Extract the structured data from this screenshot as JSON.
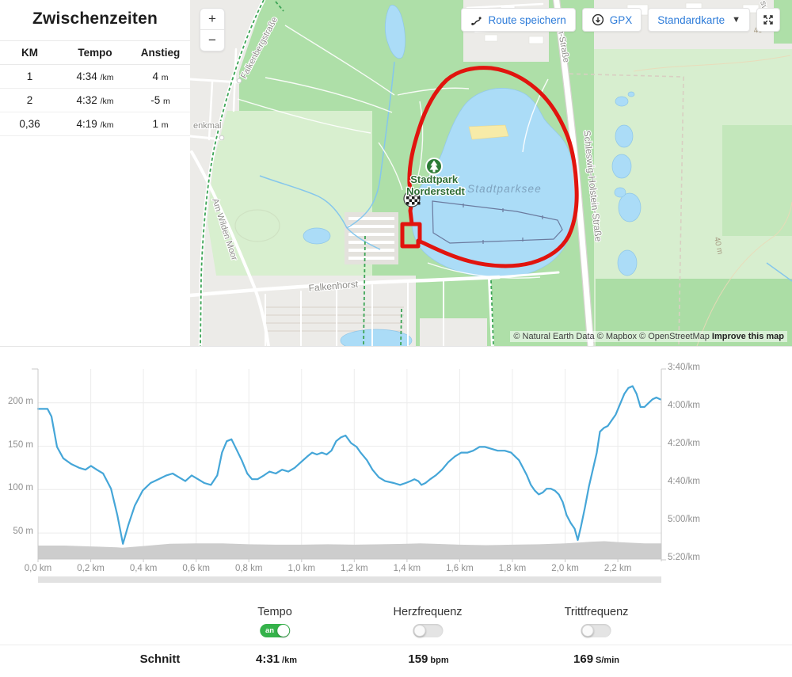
{
  "splits_panel": {
    "title": "Zwischenzeiten",
    "columns": [
      "KM",
      "Tempo",
      "Anstieg"
    ],
    "rows": [
      {
        "km": "1",
        "tempo": "4:34",
        "tempo_unit": "/km",
        "anstieg": "4",
        "anstieg_unit": "m"
      },
      {
        "km": "2",
        "tempo": "4:32",
        "tempo_unit": "/km",
        "anstieg": "-5",
        "anstieg_unit": "m"
      },
      {
        "km": "0,36",
        "tempo": "4:19",
        "tempo_unit": "/km",
        "anstieg": "1",
        "anstieg_unit": "m"
      }
    ]
  },
  "map": {
    "controls": {
      "zoom_in": "+",
      "zoom_out": "−",
      "save_route": "Route speichern",
      "gpx": "GPX",
      "map_style": "Standardkarte"
    },
    "labels": {
      "park": [
        "Stadtpark",
        "Norderstedt"
      ],
      "lake": "Stadtparksee",
      "falkenbergstrasse": "Falkenbergstraße",
      "am_wilden_moor": "Am Wilden Moor",
      "falkenhorst": "Falkenhorst",
      "schleswig_holstein_strasse": "Schleswig-Holstein-Straße",
      "holstein_strasse_fragment": "olstein-Straße",
      "denkmal_fragment": "enkmal",
      "sv_fragment": "sv",
      "contour_40_a": "40 m",
      "contour_40_b": "40 m"
    },
    "attribution": {
      "text": "© Natural Earth Data © Mapbox © OpenStreetMap",
      "improve_link": "Improve this map"
    },
    "colors": {
      "route": "#e1140e",
      "water": "#abdcf7",
      "park_green": "#aedfa8",
      "accent_blue": "#2e7cd9"
    }
  },
  "chart_data": {
    "type": "line",
    "x_axis": {
      "unit": "km",
      "min": 0,
      "max": 2.365,
      "tick_interval": 0.2,
      "tick_labels": [
        "0,0 km",
        "0,2 km",
        "0,4 km",
        "0,6 km",
        "0,8 km",
        "1,0 km",
        "1,2 km",
        "1,4 km",
        "1,6 km",
        "1,8 km",
        "2,0 km",
        "2,2 km"
      ]
    },
    "left_axis": {
      "unit": "m",
      "tick_values": [
        200,
        150,
        100,
        50
      ],
      "tick_labels": [
        "200 m",
        "150 m",
        "100 m",
        "50 m"
      ],
      "range": [
        20,
        239
      ]
    },
    "right_axis": {
      "unit": "/km",
      "tick_seconds": [
        220,
        240,
        260,
        280,
        300,
        320
      ],
      "tick_labels": [
        "3:40/km",
        "4:00/km",
        "4:20/km",
        "4:40/km",
        "5:00/km",
        "5:20/km"
      ],
      "range": [
        220,
        320
      ]
    },
    "grid": true,
    "series": [
      {
        "id": "pace",
        "axis": "right",
        "color": "#45a6d8",
        "points": [
          [
            0.0,
            241
          ],
          [
            0.036,
            241
          ],
          [
            0.051,
            245
          ],
          [
            0.072,
            261
          ],
          [
            0.096,
            267
          ],
          [
            0.126,
            270
          ],
          [
            0.156,
            272
          ],
          [
            0.18,
            273
          ],
          [
            0.201,
            271
          ],
          [
            0.223,
            273
          ],
          [
            0.247,
            275
          ],
          [
            0.277,
            283
          ],
          [
            0.301,
            297
          ],
          [
            0.322,
            312
          ],
          [
            0.343,
            302
          ],
          [
            0.367,
            292
          ],
          [
            0.397,
            284
          ],
          [
            0.427,
            280
          ],
          [
            0.457,
            278
          ],
          [
            0.487,
            276
          ],
          [
            0.511,
            275
          ],
          [
            0.535,
            277
          ],
          [
            0.559,
            279
          ],
          [
            0.583,
            276
          ],
          [
            0.607,
            278
          ],
          [
            0.631,
            280
          ],
          [
            0.656,
            281
          ],
          [
            0.68,
            276
          ],
          [
            0.698,
            264
          ],
          [
            0.716,
            258
          ],
          [
            0.734,
            257
          ],
          [
            0.752,
            262
          ],
          [
            0.773,
            268
          ],
          [
            0.794,
            275
          ],
          [
            0.812,
            278
          ],
          [
            0.833,
            278
          ],
          [
            0.857,
            276
          ],
          [
            0.878,
            274
          ],
          [
            0.902,
            275
          ],
          [
            0.926,
            273
          ],
          [
            0.95,
            274
          ],
          [
            0.974,
            272
          ],
          [
            0.998,
            269
          ],
          [
            1.022,
            266
          ],
          [
            1.04,
            264
          ],
          [
            1.058,
            265
          ],
          [
            1.077,
            264
          ],
          [
            1.095,
            265
          ],
          [
            1.113,
            263
          ],
          [
            1.131,
            258
          ],
          [
            1.149,
            256
          ],
          [
            1.167,
            255
          ],
          [
            1.188,
            259
          ],
          [
            1.209,
            261
          ],
          [
            1.224,
            264
          ],
          [
            1.248,
            268
          ],
          [
            1.269,
            273
          ],
          [
            1.293,
            277
          ],
          [
            1.317,
            279
          ],
          [
            1.35,
            280
          ],
          [
            1.374,
            281
          ],
          [
            1.395,
            280
          ],
          [
            1.413,
            279
          ],
          [
            1.428,
            278
          ],
          [
            1.443,
            279
          ],
          [
            1.455,
            281
          ],
          [
            1.47,
            280
          ],
          [
            1.488,
            278
          ],
          [
            1.509,
            276
          ],
          [
            1.533,
            273
          ],
          [
            1.557,
            269
          ],
          [
            1.582,
            266
          ],
          [
            1.606,
            264
          ],
          [
            1.63,
            264
          ],
          [
            1.651,
            263
          ],
          [
            1.675,
            261
          ],
          [
            1.696,
            261
          ],
          [
            1.72,
            262
          ],
          [
            1.744,
            263
          ],
          [
            1.771,
            263
          ],
          [
            1.795,
            264
          ],
          [
            1.81,
            266
          ],
          [
            1.825,
            268
          ],
          [
            1.84,
            272
          ],
          [
            1.855,
            276
          ],
          [
            1.87,
            281
          ],
          [
            1.885,
            284
          ],
          [
            1.9,
            286
          ],
          [
            1.915,
            285
          ],
          [
            1.93,
            283
          ],
          [
            1.946,
            283
          ],
          [
            1.961,
            284
          ],
          [
            1.976,
            286
          ],
          [
            1.991,
            290
          ],
          [
            2.006,
            297
          ],
          [
            2.021,
            301
          ],
          [
            2.036,
            304
          ],
          [
            2.048,
            310
          ],
          [
            2.06,
            303
          ],
          [
            2.075,
            293
          ],
          [
            2.09,
            282
          ],
          [
            2.105,
            273
          ],
          [
            2.12,
            264
          ],
          [
            2.132,
            253
          ],
          [
            2.147,
            251
          ],
          [
            2.162,
            250
          ],
          [
            2.177,
            247
          ],
          [
            2.192,
            244
          ],
          [
            2.207,
            239
          ],
          [
            2.225,
            233
          ],
          [
            2.24,
            230
          ],
          [
            2.256,
            229
          ],
          [
            2.271,
            233
          ],
          [
            2.286,
            240
          ],
          [
            2.301,
            240
          ],
          [
            2.316,
            238
          ],
          [
            2.331,
            236
          ],
          [
            2.346,
            235
          ],
          [
            2.361,
            236
          ]
        ]
      },
      {
        "id": "elevation",
        "axis": "left",
        "style": "area",
        "color": "#cdcdcd",
        "points": [
          [
            0,
            35.5
          ],
          [
            0.1,
            35.5
          ],
          [
            0.2,
            34.5
          ],
          [
            0.3,
            33.5
          ],
          [
            0.32,
            33
          ],
          [
            0.4,
            35
          ],
          [
            0.5,
            37.5
          ],
          [
            0.6,
            38
          ],
          [
            0.7,
            38
          ],
          [
            0.8,
            37
          ],
          [
            0.9,
            36.5
          ],
          [
            1.0,
            36.5
          ],
          [
            1.1,
            37
          ],
          [
            1.2,
            36.5
          ],
          [
            1.3,
            37
          ],
          [
            1.4,
            37.5
          ],
          [
            1.45,
            38
          ],
          [
            1.5,
            37.5
          ],
          [
            1.6,
            36.5
          ],
          [
            1.7,
            36
          ],
          [
            1.8,
            36.5
          ],
          [
            1.9,
            37
          ],
          [
            2.0,
            38
          ],
          [
            2.05,
            39
          ],
          [
            2.1,
            40
          ],
          [
            2.15,
            40.5
          ],
          [
            2.2,
            39.5
          ],
          [
            2.3,
            38
          ],
          [
            2.365,
            38
          ]
        ]
      }
    ]
  },
  "controls_row": {
    "toggles": [
      {
        "label": "Tempo",
        "state": "on",
        "on_text": "an"
      },
      {
        "label": "Herzfrequenz",
        "state": "off"
      },
      {
        "label": "Trittfrequenz",
        "state": "off"
      }
    ]
  },
  "summary": {
    "label": "Schnitt",
    "tempo": {
      "value": "4:31",
      "unit": "/km"
    },
    "heart_rate": {
      "value": "159",
      "unit": "bpm"
    },
    "cadence": {
      "value": "169",
      "unit": "S/min"
    }
  }
}
